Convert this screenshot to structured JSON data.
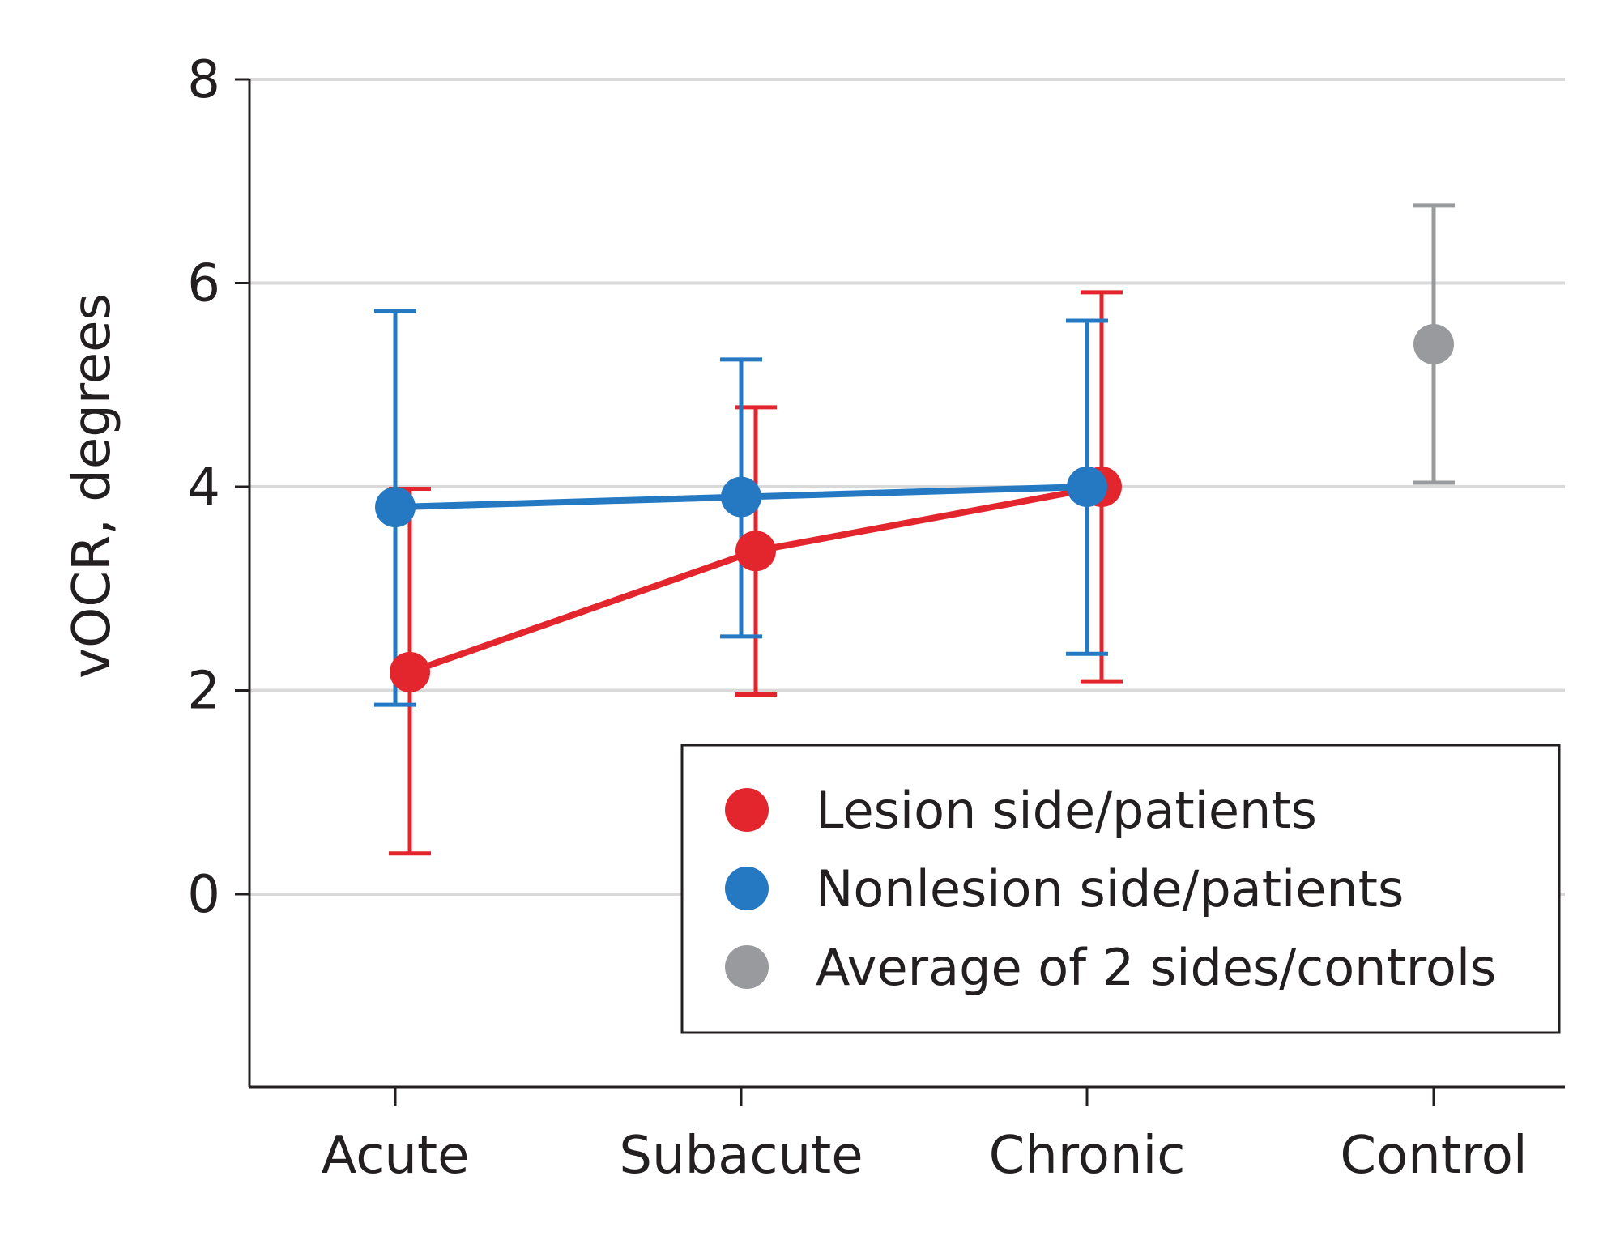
{
  "chart_data": {
    "type": "scatter",
    "title": "",
    "xlabel": "",
    "ylabel": "vOCR, degrees",
    "categories": [
      "Acute",
      "Subacute",
      "Chronic",
      "Control"
    ],
    "ylim": [
      -1.9,
      8
    ],
    "yticks": [
      0,
      2,
      4,
      6,
      8
    ],
    "grid": true,
    "legend_position": "lower-right",
    "series": [
      {
        "name": "Lesion side/patients",
        "color": "#e3262d",
        "connected": true,
        "points": [
          {
            "category": "Acute",
            "value": 2.18,
            "lower": 0.4,
            "upper": 3.98
          },
          {
            "category": "Subacute",
            "value": 3.37,
            "lower": 1.96,
            "upper": 4.78
          },
          {
            "category": "Chronic",
            "value": 4.0,
            "lower": 2.09,
            "upper": 5.91
          }
        ]
      },
      {
        "name": "Nonlesion side/patients",
        "color": "#2479c2",
        "connected": true,
        "points": [
          {
            "category": "Acute",
            "value": 3.8,
            "lower": 1.86,
            "upper": 5.73
          },
          {
            "category": "Subacute",
            "value": 3.9,
            "lower": 2.53,
            "upper": 5.25
          },
          {
            "category": "Chronic",
            "value": 4.0,
            "lower": 2.36,
            "upper": 5.63
          }
        ]
      },
      {
        "name": "Average of 2 sides/controls",
        "color": "#999a9d",
        "connected": false,
        "points": [
          {
            "category": "Control",
            "value": 5.4,
            "lower": 4.04,
            "upper": 6.76
          }
        ]
      }
    ]
  }
}
